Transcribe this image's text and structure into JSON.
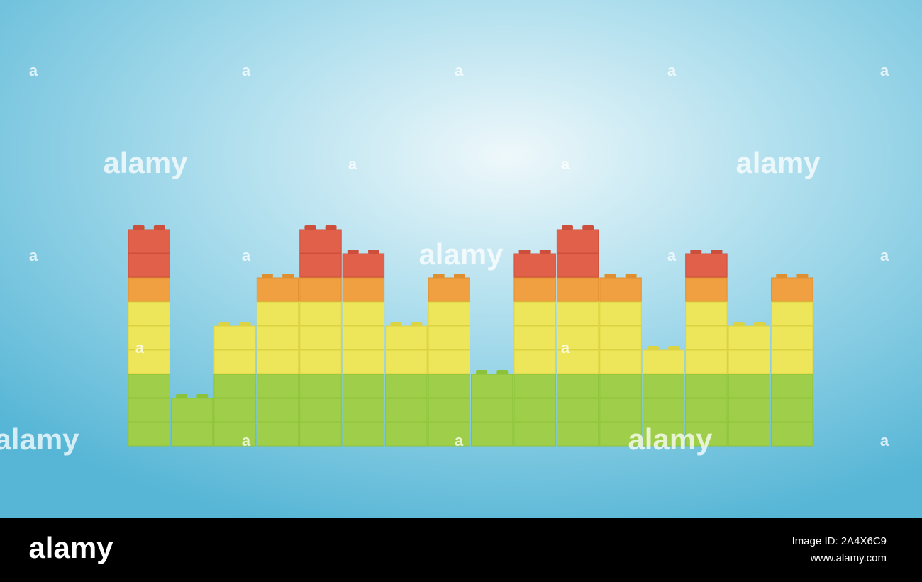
{
  "image": {
    "description_columns": [
      9,
      2,
      5,
      7,
      9,
      8,
      5,
      7,
      3,
      8,
      9,
      7,
      4,
      8,
      5,
      7
    ]
  },
  "watermarks": [
    "alamy",
    "alamy",
    "alamy",
    "alamy",
    "alamy",
    "a",
    "a",
    "a",
    "a",
    "a",
    "a",
    "a",
    "a",
    "a",
    "a",
    "a",
    "a",
    "a",
    "a",
    "a",
    "a"
  ],
  "footer": {
    "logo": "alamy",
    "image_id": "Image ID: 2A4X6C9",
    "url": "www.alamy.com"
  }
}
